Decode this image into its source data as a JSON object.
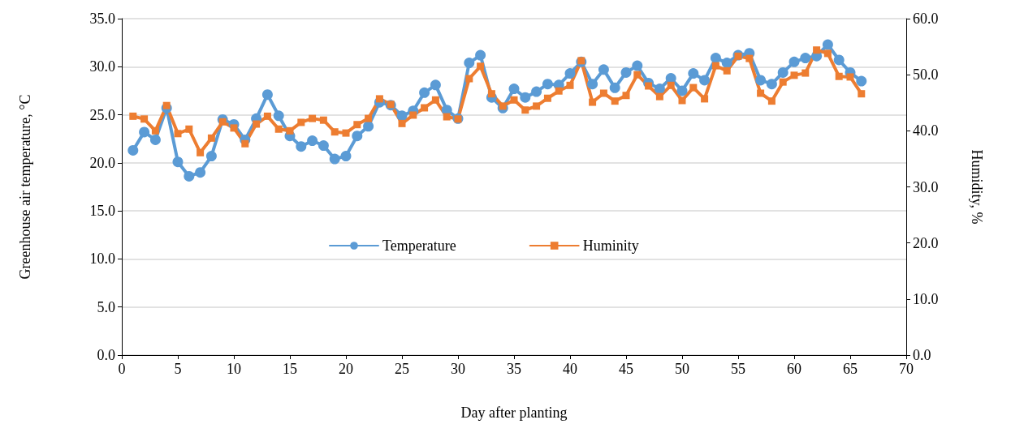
{
  "chart_data": {
    "type": "line",
    "xlabel": "Day after planting",
    "ylabel": "Greenhouse air temperature, °C",
    "y2label": "Humidity, %",
    "x": [
      1,
      2,
      3,
      4,
      5,
      6,
      7,
      8,
      9,
      10,
      11,
      12,
      13,
      14,
      15,
      16,
      17,
      18,
      19,
      20,
      21,
      22,
      23,
      24,
      25,
      26,
      27,
      28,
      29,
      30,
      31,
      32,
      33,
      34,
      35,
      36,
      37,
      38,
      39,
      40,
      41,
      42,
      43,
      44,
      45,
      46,
      47,
      48,
      49,
      50,
      51,
      52,
      53,
      54,
      55,
      56,
      57,
      58,
      59,
      60,
      61,
      62,
      63,
      64,
      65,
      66
    ],
    "series": [
      {
        "name": "Temperature",
        "color": "#5b9bd5",
        "marker": "circle",
        "values": [
          21.3,
          23.2,
          22.4,
          25.7,
          20.1,
          18.6,
          19.0,
          20.7,
          24.5,
          24.0,
          22.4,
          24.6,
          27.1,
          24.9,
          22.8,
          21.7,
          22.3,
          21.8,
          20.4,
          20.7,
          22.8,
          23.8,
          26.3,
          26.0,
          24.9,
          25.4,
          27.3,
          28.1,
          25.5,
          24.6,
          30.4,
          31.2,
          26.8,
          25.7,
          27.7,
          26.8,
          27.4,
          28.2,
          28.1,
          29.3,
          30.5,
          28.2,
          29.7,
          27.8,
          29.4,
          30.1,
          28.3,
          27.7,
          28.8,
          27.5,
          29.3,
          28.6,
          30.9,
          30.4,
          31.2,
          31.4,
          28.6,
          28.2,
          29.4,
          30.5,
          30.9,
          31.1,
          32.3,
          30.7,
          29.4,
          28.5
        ]
      },
      {
        "name": "Huminity",
        "color": "#ed7d31",
        "marker": "square",
        "axis": "y2",
        "values": [
          42.6,
          42.1,
          40.0,
          44.5,
          39.5,
          40.3,
          36.1,
          38.7,
          41.6,
          40.5,
          37.7,
          41.2,
          42.6,
          40.3,
          40.0,
          41.5,
          42.2,
          41.9,
          39.8,
          39.6,
          41.1,
          42.2,
          45.7,
          44.7,
          41.3,
          42.8,
          44.1,
          45.5,
          42.5,
          42.1,
          49.3,
          51.5,
          46.6,
          44.4,
          45.5,
          43.7,
          44.4,
          45.8,
          47.1,
          48.1,
          52.5,
          45.1,
          46.7,
          45.3,
          46.3,
          50.0,
          48.0,
          46.1,
          48.1,
          45.4,
          47.7,
          45.7,
          51.6,
          50.7,
          53.3,
          52.9,
          46.7,
          45.3,
          48.7,
          49.9,
          50.3,
          54.4,
          53.8,
          49.7,
          49.6,
          46.6
        ]
      }
    ],
    "xlim": [
      0,
      70
    ],
    "xticks": [
      0,
      5,
      10,
      15,
      20,
      25,
      30,
      35,
      40,
      45,
      50,
      55,
      60,
      65,
      70
    ],
    "ylim": [
      0,
      35
    ],
    "yticks": [
      {
        "value": 0,
        "label": "0.0"
      },
      {
        "value": 5,
        "label": "5.0"
      },
      {
        "value": 10,
        "label": "10.0"
      },
      {
        "value": 15,
        "label": "15.0"
      },
      {
        "value": 20,
        "label": "20.0"
      },
      {
        "value": 25,
        "label": "25.0"
      },
      {
        "value": 30,
        "label": "30.0"
      },
      {
        "value": 35,
        "label": "35.0"
      }
    ],
    "y2lim": [
      0,
      60
    ],
    "y2ticks": [
      {
        "value": 0,
        "label": "0.0"
      },
      {
        "value": 10,
        "label": "10.0"
      },
      {
        "value": 20,
        "label": "20.0"
      },
      {
        "value": 30,
        "label": "30.0"
      },
      {
        "value": 40,
        "label": "40.0"
      },
      {
        "value": 50,
        "label": "50.0"
      },
      {
        "value": 60,
        "label": "60.0"
      }
    ],
    "grid": "y",
    "legend": "center",
    "line_style": "solid"
  }
}
